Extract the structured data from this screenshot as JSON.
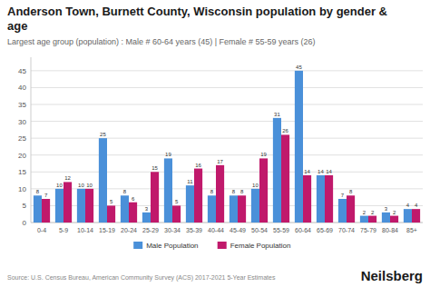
{
  "chart_data": {
    "type": "bar",
    "title": "Anderson Town, Burnett County, Wisconsin population by gender &\nage",
    "subtitle": "Largest age group (population) : Male # 60-64 years (45) | Female # 55-59 years (26)",
    "annotations": [
      "Source: U.S. Census Bureau, American Community Survey (ACS) 2017-2021 5-Year Estimates",
      "Neilsberg"
    ],
    "categories": [
      "0-4",
      "5-9",
      "10-14",
      "15-19",
      "20-24",
      "25-29",
      "30-34",
      "35-39",
      "40-44",
      "45-49",
      "50-54",
      "55-59",
      "60-64",
      "65-69",
      "70-74",
      "75-79",
      "80-84",
      "85+"
    ],
    "series": [
      {
        "name": "Male Population",
        "color": "#4a90d9",
        "values": [
          8,
          10,
          10,
          25,
          8,
          3,
          19,
          11,
          8,
          8,
          10,
          31,
          45,
          14,
          7,
          2,
          3,
          4
        ]
      },
      {
        "name": "Female Population",
        "color": "#c0196b",
        "values": [
          7,
          12,
          10,
          5,
          6,
          15,
          5,
          16,
          17,
          8,
          19,
          26,
          14,
          14,
          8,
          2,
          2,
          4
        ]
      }
    ],
    "ylim": [
      0,
      49
    ],
    "yticks": [
      0,
      5,
      10,
      15,
      20,
      25,
      30,
      35,
      40,
      45
    ],
    "grid": true,
    "data_labels": true,
    "legend": "bottom"
  }
}
